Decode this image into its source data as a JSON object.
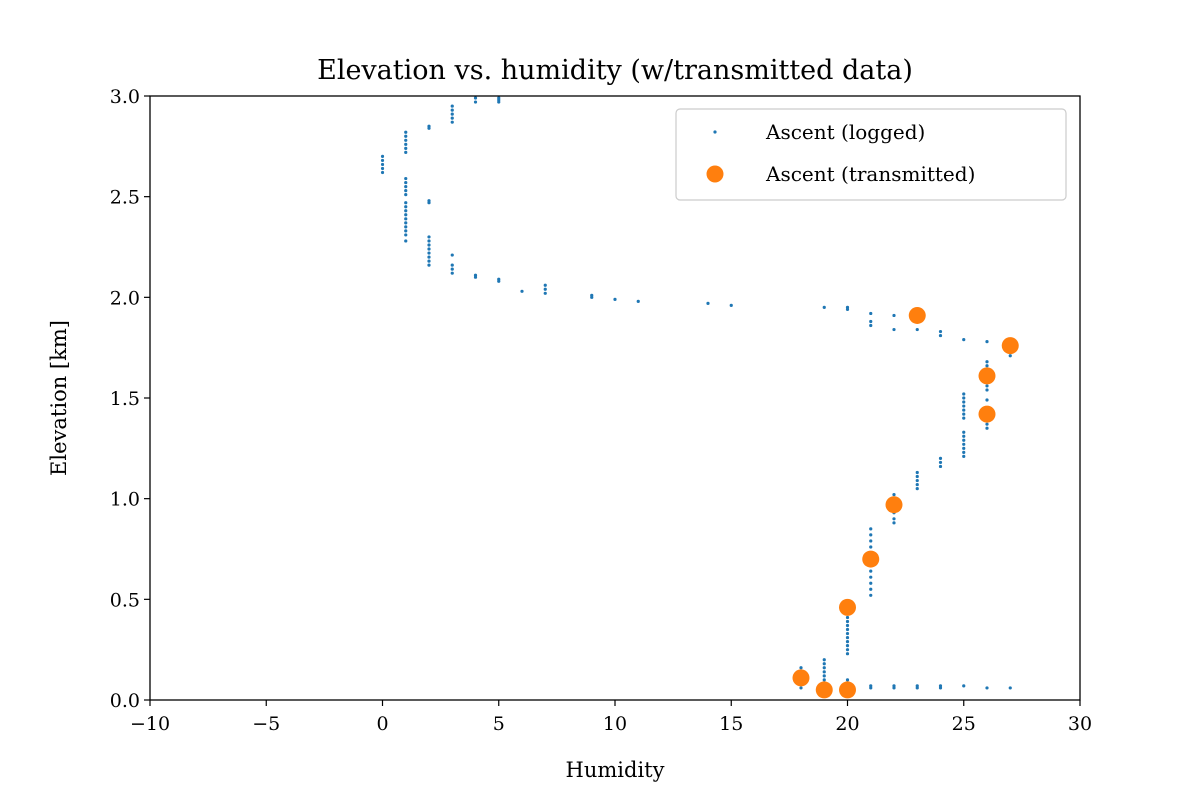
{
  "chart_data": {
    "type": "scatter",
    "title": "Elevation vs. humidity (w/transmitted data)",
    "xlabel": "Humidity",
    "ylabel": "Elevation [km]",
    "xlim": [
      -10,
      30
    ],
    "ylim": [
      0.0,
      3.0
    ],
    "xticks": [
      -10,
      -5,
      0,
      5,
      10,
      15,
      20,
      25,
      30
    ],
    "xtick_labels": [
      "−10",
      "−5",
      "0",
      "5",
      "10",
      "15",
      "20",
      "25",
      "30"
    ],
    "yticks": [
      0.0,
      0.5,
      1.0,
      1.5,
      2.0,
      2.5,
      3.0
    ],
    "ytick_labels": [
      "0.0",
      "0.5",
      "1.0",
      "1.5",
      "2.0",
      "2.5",
      "3.0"
    ],
    "grid": false,
    "legend_position": "top-right",
    "series": [
      {
        "name": "Ascent (logged)",
        "marker": "small-dot",
        "color": "#1f77b4",
        "points": [
          [
            18,
            0.06
          ],
          [
            18,
            0.08
          ],
          [
            18,
            0.1
          ],
          [
            18,
            0.12
          ],
          [
            18,
            0.14
          ],
          [
            18,
            0.16
          ],
          [
            19,
            0.06
          ],
          [
            19,
            0.08
          ],
          [
            19,
            0.1
          ],
          [
            19,
            0.12
          ],
          [
            19,
            0.14
          ],
          [
            19,
            0.16
          ],
          [
            19,
            0.18
          ],
          [
            19,
            0.2
          ],
          [
            20,
            0.06
          ],
          [
            20,
            0.08
          ],
          [
            20,
            0.1
          ],
          [
            20,
            0.23
          ],
          [
            20,
            0.25
          ],
          [
            20,
            0.27
          ],
          [
            20,
            0.29
          ],
          [
            20,
            0.31
          ],
          [
            20,
            0.33
          ],
          [
            20,
            0.35
          ],
          [
            20,
            0.37
          ],
          [
            20,
            0.39
          ],
          [
            20,
            0.41
          ],
          [
            20,
            0.43
          ],
          [
            20,
            0.45
          ],
          [
            20,
            0.47
          ],
          [
            20,
            0.49
          ],
          [
            21,
            0.06
          ],
          [
            21,
            0.07
          ],
          [
            22,
            0.06
          ],
          [
            22,
            0.07
          ],
          [
            23,
            0.06
          ],
          [
            23,
            0.07
          ],
          [
            24,
            0.06
          ],
          [
            24,
            0.07
          ],
          [
            25,
            0.07
          ],
          [
            26,
            0.06
          ],
          [
            27,
            0.06
          ],
          [
            21,
            0.52
          ],
          [
            21,
            0.55
          ],
          [
            21,
            0.58
          ],
          [
            21,
            0.61
          ],
          [
            21,
            0.64
          ],
          [
            21,
            0.67
          ],
          [
            21,
            0.7
          ],
          [
            21,
            0.73
          ],
          [
            21,
            0.76
          ],
          [
            21,
            0.79
          ],
          [
            21,
            0.82
          ],
          [
            21,
            0.85
          ],
          [
            22,
            0.88
          ],
          [
            22,
            0.9
          ],
          [
            22,
            0.93
          ],
          [
            22,
            0.96
          ],
          [
            22,
            0.99
          ],
          [
            22,
            1.02
          ],
          [
            23,
            1.05
          ],
          [
            23,
            1.07
          ],
          [
            23,
            1.09
          ],
          [
            23,
            1.11
          ],
          [
            23,
            1.13
          ],
          [
            24,
            1.16
          ],
          [
            24,
            1.18
          ],
          [
            24,
            1.2
          ],
          [
            25,
            1.21
          ],
          [
            25,
            1.23
          ],
          [
            25,
            1.25
          ],
          [
            25,
            1.27
          ],
          [
            25,
            1.29
          ],
          [
            25,
            1.31
          ],
          [
            25,
            1.33
          ],
          [
            25,
            1.4
          ],
          [
            25,
            1.42
          ],
          [
            25,
            1.44
          ],
          [
            25,
            1.46
          ],
          [
            25,
            1.48
          ],
          [
            25,
            1.5
          ],
          [
            25,
            1.52
          ],
          [
            26,
            1.35
          ],
          [
            26,
            1.37
          ],
          [
            26,
            1.39
          ],
          [
            26,
            1.41
          ],
          [
            26,
            1.43
          ],
          [
            26,
            1.49
          ],
          [
            26,
            1.54
          ],
          [
            26,
            1.56
          ],
          [
            26,
            1.58
          ],
          [
            26,
            1.6
          ],
          [
            26,
            1.62
          ],
          [
            26,
            1.64
          ],
          [
            26,
            1.66
          ],
          [
            26,
            1.68
          ],
          [
            27,
            1.71
          ],
          [
            27,
            1.73
          ],
          [
            26,
            1.78
          ],
          [
            25,
            1.79
          ],
          [
            24,
            1.81
          ],
          [
            24,
            1.83
          ],
          [
            23,
            1.84
          ],
          [
            22,
            1.84
          ],
          [
            21,
            1.86
          ],
          [
            21,
            1.88
          ],
          [
            22,
            1.91
          ],
          [
            21,
            1.92
          ],
          [
            20,
            1.94
          ],
          [
            20,
            1.95
          ],
          [
            19,
            1.95
          ],
          [
            15,
            1.96
          ],
          [
            14,
            1.97
          ],
          [
            11,
            1.98
          ],
          [
            10,
            1.99
          ],
          [
            9,
            2.0
          ],
          [
            9,
            2.01
          ],
          [
            7,
            2.02
          ],
          [
            7,
            2.04
          ],
          [
            7,
            2.06
          ],
          [
            6,
            2.03
          ],
          [
            5,
            2.08
          ],
          [
            5,
            2.09
          ],
          [
            4,
            2.1
          ],
          [
            4,
            2.11
          ],
          [
            3,
            2.12
          ],
          [
            3,
            2.14
          ],
          [
            3,
            2.16
          ],
          [
            3,
            2.21
          ],
          [
            2,
            2.16
          ],
          [
            2,
            2.18
          ],
          [
            2,
            2.2
          ],
          [
            2,
            2.22
          ],
          [
            2,
            2.24
          ],
          [
            2,
            2.26
          ],
          [
            2,
            2.28
          ],
          [
            2,
            2.3
          ],
          [
            2,
            2.47
          ],
          [
            2,
            2.48
          ],
          [
            1,
            2.28
          ],
          [
            1,
            2.31
          ],
          [
            1,
            2.33
          ],
          [
            1,
            2.35
          ],
          [
            1,
            2.37
          ],
          [
            1,
            2.39
          ],
          [
            1,
            2.41
          ],
          [
            1,
            2.43
          ],
          [
            1,
            2.45
          ],
          [
            1,
            2.47
          ],
          [
            1,
            2.51
          ],
          [
            1,
            2.53
          ],
          [
            1,
            2.55
          ],
          [
            1,
            2.57
          ],
          [
            1,
            2.59
          ],
          [
            0,
            2.62
          ],
          [
            0,
            2.64
          ],
          [
            0,
            2.66
          ],
          [
            0,
            2.68
          ],
          [
            0,
            2.7
          ],
          [
            1,
            2.72
          ],
          [
            1,
            2.74
          ],
          [
            1,
            2.76
          ],
          [
            1,
            2.78
          ],
          [
            1,
            2.8
          ],
          [
            1,
            2.82
          ],
          [
            2,
            2.84
          ],
          [
            2,
            2.85
          ],
          [
            3,
            2.87
          ],
          [
            3,
            2.89
          ],
          [
            3,
            2.91
          ],
          [
            3,
            2.93
          ],
          [
            3,
            2.95
          ],
          [
            4,
            2.97
          ],
          [
            4,
            2.99
          ],
          [
            5,
            2.97
          ],
          [
            5,
            2.98
          ],
          [
            5,
            2.99
          ]
        ]
      },
      {
        "name": "Ascent (transmitted)",
        "marker": "large-dot",
        "color": "#ff7f0e",
        "points": [
          [
            18,
            0.11
          ],
          [
            19,
            0.05
          ],
          [
            20,
            0.05
          ],
          [
            20,
            0.46
          ],
          [
            21,
            0.7
          ],
          [
            22,
            0.97
          ],
          [
            26,
            1.42
          ],
          [
            26,
            1.61
          ],
          [
            27,
            1.76
          ],
          [
            23,
            1.91
          ]
        ]
      }
    ]
  }
}
